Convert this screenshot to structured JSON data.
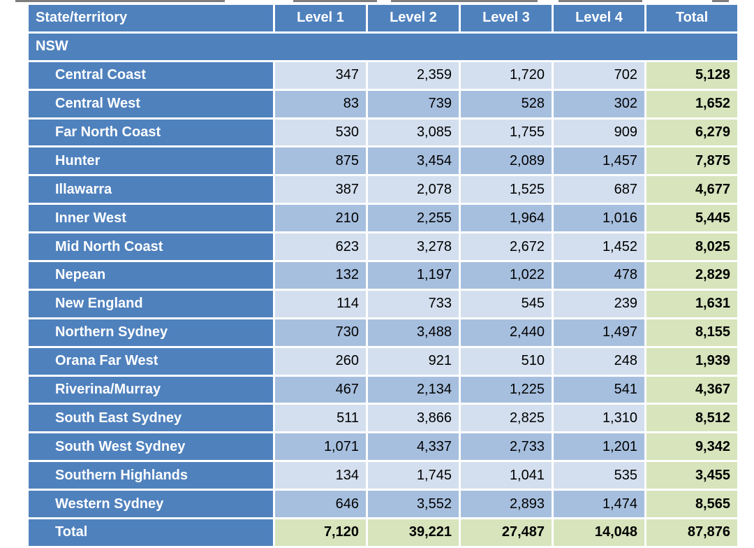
{
  "table": {
    "headers": [
      "State/territory",
      "Level 1",
      "Level 2",
      "Level 3",
      "Level 4",
      "Total"
    ],
    "section_label": "NSW",
    "rows": [
      {
        "region": "Central Coast",
        "l1": "347",
        "l2": "2,359",
        "l3": "1,720",
        "l4": "702",
        "total": "5,128"
      },
      {
        "region": "Central West",
        "l1": "83",
        "l2": "739",
        "l3": "528",
        "l4": "302",
        "total": "1,652"
      },
      {
        "region": "Far North Coast",
        "l1": "530",
        "l2": "3,085",
        "l3": "1,755",
        "l4": "909",
        "total": "6,279"
      },
      {
        "region": "Hunter",
        "l1": "875",
        "l2": "3,454",
        "l3": "2,089",
        "l4": "1,457",
        "total": "7,875"
      },
      {
        "region": "Illawarra",
        "l1": "387",
        "l2": "2,078",
        "l3": "1,525",
        "l4": "687",
        "total": "4,677"
      },
      {
        "region": "Inner West",
        "l1": "210",
        "l2": "2,255",
        "l3": "1,964",
        "l4": "1,016",
        "total": "5,445"
      },
      {
        "region": "Mid North Coast",
        "l1": "623",
        "l2": "3,278",
        "l3": "2,672",
        "l4": "1,452",
        "total": "8,025"
      },
      {
        "region": "Nepean",
        "l1": "132",
        "l2": "1,197",
        "l3": "1,022",
        "l4": "478",
        "total": "2,829"
      },
      {
        "region": "New England",
        "l1": "114",
        "l2": "733",
        "l3": "545",
        "l4": "239",
        "total": "1,631"
      },
      {
        "region": "Northern Sydney",
        "l1": "730",
        "l2": "3,488",
        "l3": "2,440",
        "l4": "1,497",
        "total": "8,155"
      },
      {
        "region": "Orana Far West",
        "l1": "260",
        "l2": "921",
        "l3": "510",
        "l4": "248",
        "total": "1,939"
      },
      {
        "region": "Riverina/Murray",
        "l1": "467",
        "l2": "2,134",
        "l3": "1,225",
        "l4": "541",
        "total": "4,367"
      },
      {
        "region": "South East Sydney",
        "l1": "511",
        "l2": "3,866",
        "l3": "2,825",
        "l4": "1,310",
        "total": "8,512"
      },
      {
        "region": "South West Sydney",
        "l1": "1,071",
        "l2": "4,337",
        "l3": "2,733",
        "l4": "1,201",
        "total": "9,342"
      },
      {
        "region": "Southern Highlands",
        "l1": "134",
        "l2": "1,745",
        "l3": "1,041",
        "l4": "535",
        "total": "3,455"
      },
      {
        "region": "Western Sydney",
        "l1": "646",
        "l2": "3,552",
        "l3": "2,893",
        "l4": "1,474",
        "total": "8,565"
      }
    ],
    "total_row": {
      "region": "Total",
      "l1": "7,120",
      "l2": "39,221",
      "l3": "27,487",
      "l4": "14,048",
      "total": "87,876"
    }
  },
  "colors": {
    "header_blue": "#4f81bd",
    "cell_light_blue": "#d3dfee",
    "cell_mid_blue": "#a7bfde",
    "total_green": "#d7e4bc"
  }
}
